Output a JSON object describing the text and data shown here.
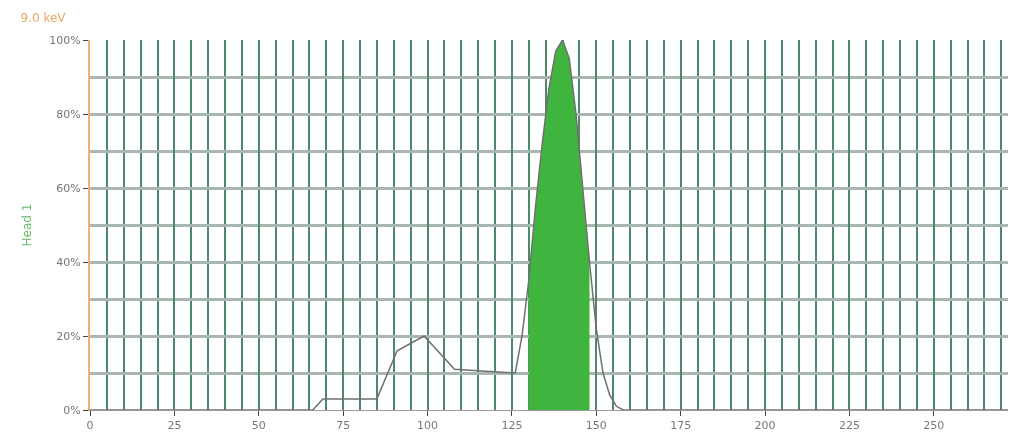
{
  "chart_data": {
    "type": "line",
    "title": "9.0 keV",
    "ylabel": "Head 1",
    "xlim": [
      0,
      272
    ],
    "xticks": [
      0,
      25,
      50,
      75,
      100,
      125,
      150,
      175,
      200,
      225,
      250
    ],
    "ylim": [
      0,
      100
    ],
    "yticks": [
      {
        "value": 0,
        "label": "0%"
      },
      {
        "value": 20,
        "label": "20%"
      },
      {
        "value": 40,
        "label": "40%"
      },
      {
        "value": 60,
        "label": "60%"
      },
      {
        "value": 80,
        "label": "80%"
      },
      {
        "value": 100,
        "label": "100%"
      }
    ],
    "grid": true,
    "marker": "none",
    "line_style": "solid",
    "series": [
      {
        "type": "area",
        "color": "#3fb53f",
        "x": [
          130,
          132,
          134,
          136,
          138,
          140,
          142,
          144,
          146,
          148
        ],
        "values": [
          35,
          55,
          72,
          87,
          97,
          100,
          95,
          80,
          60,
          40
        ]
      },
      {
        "color": "#707070",
        "x": [
          0,
          66,
          69,
          85,
          91,
          99,
          108,
          126,
          128,
          130,
          132,
          134,
          136,
          138,
          140,
          142,
          144,
          146,
          148,
          150,
          152,
          154,
          156,
          158,
          272
        ],
        "values": [
          0,
          0,
          3,
          3,
          16,
          20,
          11,
          10,
          20,
          35,
          55,
          72,
          87,
          97,
          100,
          95,
          80,
          60,
          40,
          22,
          10,
          4,
          1,
          0,
          0
        ]
      }
    ]
  }
}
